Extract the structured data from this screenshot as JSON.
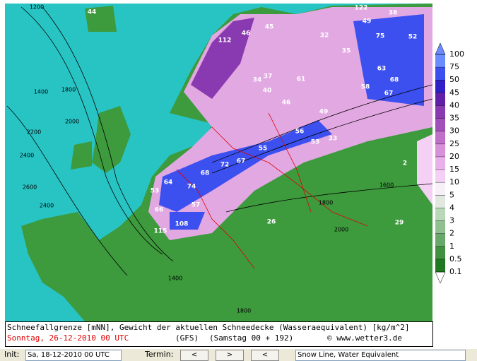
{
  "map": {
    "labels": [
      "44",
      "112",
      "46",
      "45",
      "122",
      "38",
      "49",
      "32",
      "35",
      "75",
      "52",
      "63",
      "68",
      "58",
      "67",
      "61",
      "37",
      "34",
      "40",
      "46",
      "49",
      "53",
      "33",
      "56",
      "55",
      "67",
      "72",
      "68",
      "74",
      "64",
      "53",
      "57",
      "66",
      "108",
      "115",
      "26",
      "29",
      "2"
    ],
    "contour_labels": [
      "1200",
      "1400",
      "1800",
      "2000",
      "2200",
      "2400",
      "2600",
      "2400",
      "1600",
      "1800",
      "2000",
      "1400",
      "1800"
    ]
  },
  "legend": {
    "levels": [
      100,
      75,
      50,
      45,
      40,
      35,
      30,
      25,
      20,
      15,
      10,
      5,
      4,
      3,
      2,
      1,
      0.5,
      0.1
    ],
    "colors": [
      "#6a8cff",
      "#3c50f0",
      "#3020c8",
      "#6020a8",
      "#8a3ab0",
      "#a050b8",
      "#c070c8",
      "#d890d8",
      "#eab0ea",
      "#f4d0f4",
      "#f8f0f8",
      "#e0e8e0",
      "#b8d8b8",
      "#90c090",
      "#68a868",
      "#409040",
      "#207820"
    ]
  },
  "caption": {
    "title": "Schneefallgrenze [mNN], Gewicht der aktuellen Schneedecke (Wasseraequivalent) [kg/m^2]",
    "date": "Sonntag, 26-12-2010   00 UTC",
    "model": "(GFS)",
    "run": "(Samstag 00 + 192)",
    "source": "© www.wetter3.de"
  },
  "toolbar": {
    "init_label": "Init:",
    "init_value": "Sa, 18-12-2010 00 UTC",
    "termin_label": "Termin:",
    "buttons": [
      "<",
      ">",
      "<"
    ],
    "product": "Snow Line, Water Equivalent"
  }
}
